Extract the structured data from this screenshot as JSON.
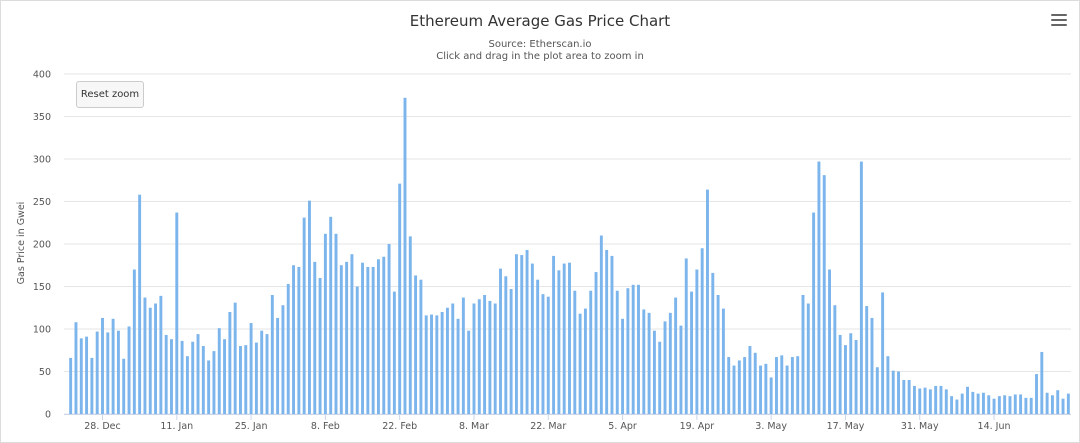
{
  "chart_data": {
    "type": "bar",
    "title": "Ethereum Average Gas Price Chart",
    "subtitle": "Source: Etherscan.io",
    "hint": "Click and drag in the plot area to zoom in",
    "ylabel": "Gas Price in Gwei",
    "ylim": [
      0,
      400
    ],
    "yticks": [
      0,
      50,
      100,
      150,
      200,
      250,
      300,
      350,
      400
    ],
    "grid": true,
    "color": "#7cb5ec",
    "x_start": "2020-12-22",
    "xticks": [
      {
        "label": "28. Dec",
        "date": "2020-12-28"
      },
      {
        "label": "11. Jan",
        "date": "2021-01-11"
      },
      {
        "label": "25. Jan",
        "date": "2021-01-25"
      },
      {
        "label": "8. Feb",
        "date": "2021-02-08"
      },
      {
        "label": "22. Feb",
        "date": "2021-02-22"
      },
      {
        "label": "8. Mar",
        "date": "2021-03-08"
      },
      {
        "label": "22. Mar",
        "date": "2021-03-22"
      },
      {
        "label": "5. Apr",
        "date": "2021-04-05"
      },
      {
        "label": "19. Apr",
        "date": "2021-04-19"
      },
      {
        "label": "3. May",
        "date": "2021-05-03"
      },
      {
        "label": "17. May",
        "date": "2021-05-17"
      },
      {
        "label": "31. May",
        "date": "2021-05-31"
      },
      {
        "label": "14. Jun",
        "date": "2021-06-14"
      }
    ],
    "values": [
      66,
      108,
      89,
      91,
      66,
      97,
      113,
      96,
      112,
      98,
      65,
      103,
      170,
      258,
      137,
      125,
      130,
      139,
      93,
      88,
      237,
      86,
      68,
      85,
      94,
      80,
      63,
      74,
      101,
      88,
      120,
      131,
      80,
      81,
      107,
      84,
      98,
      94,
      140,
      113,
      128,
      153,
      175,
      173,
      231,
      251,
      179,
      160,
      212,
      232,
      212,
      175,
      179,
      188,
      150,
      178,
      173,
      173,
      182,
      185,
      200,
      144,
      271,
      372,
      209,
      163,
      158,
      116,
      117,
      116,
      120,
      125,
      130,
      112,
      137,
      98,
      130,
      135,
      140,
      133,
      130,
      171,
      162,
      147,
      188,
      187,
      193,
      177,
      158,
      141,
      138,
      186,
      169,
      177,
      178,
      145,
      118,
      124,
      145,
      167,
      210,
      193,
      186,
      145,
      112,
      148,
      152,
      152,
      123,
      119,
      98,
      85,
      109,
      119,
      137,
      104,
      183,
      144,
      170,
      195,
      264,
      166,
      140,
      124,
      67,
      57,
      63,
      67,
      80,
      72,
      57,
      59,
      43,
      67,
      69,
      57,
      67,
      68,
      140,
      130,
      237,
      297,
      281,
      170,
      128,
      93,
      81,
      95,
      87,
      297,
      127,
      113,
      55,
      143,
      68,
      51,
      50,
      40,
      40,
      33,
      30,
      31,
      29,
      33,
      33,
      29,
      21,
      17,
      24,
      32,
      26,
      24,
      25,
      22,
      18,
      21,
      22,
      21,
      23,
      23,
      19,
      19,
      47,
      73,
      25,
      22,
      28,
      18,
      24
    ]
  },
  "ui": {
    "reset_zoom_label": "Reset zoom",
    "menu_icon": "hamburger-menu-icon"
  }
}
